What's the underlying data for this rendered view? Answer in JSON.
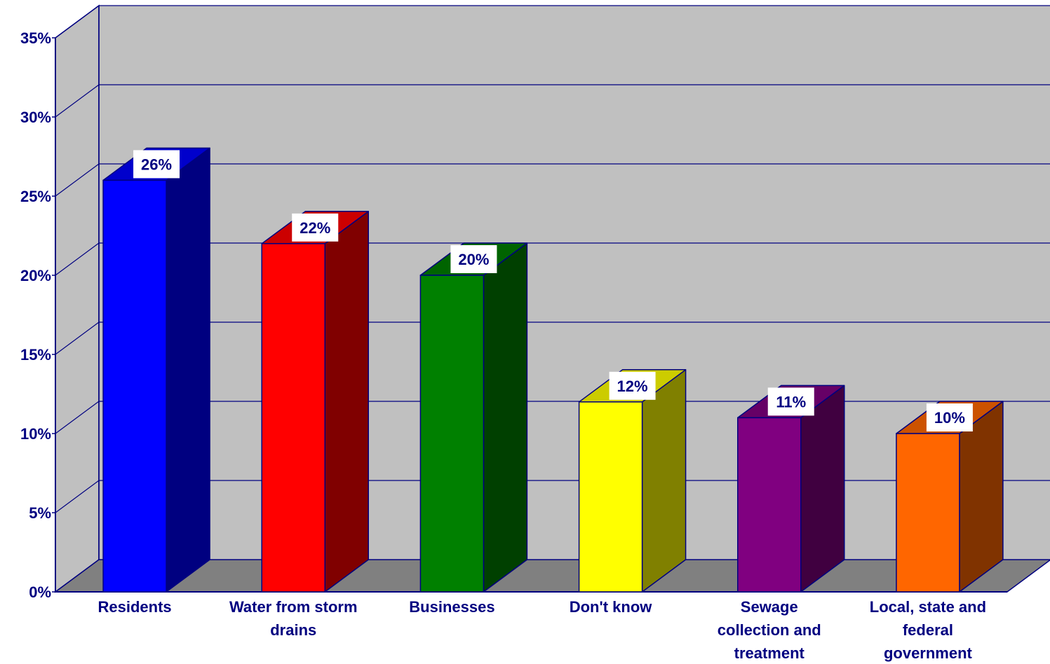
{
  "chart_data": {
    "type": "bar",
    "title": "",
    "xlabel": "",
    "ylabel": "",
    "ylim": [
      0,
      35
    ],
    "yticks": [
      "0%",
      "5%",
      "10%",
      "15%",
      "20%",
      "25%",
      "30%",
      "35%"
    ],
    "grid": true,
    "categories": [
      "Residents",
      "Water from storm drains",
      "Businesses",
      "Don't know",
      "Sewage collection and treatment",
      "Local, state and federal government"
    ],
    "category_lines": [
      [
        "Residents"
      ],
      [
        "Water from storm",
        "drains"
      ],
      [
        "Businesses"
      ],
      [
        "Don't know"
      ],
      [
        "Sewage",
        "collection and",
        "treatment"
      ],
      [
        "Local, state and",
        "federal",
        "government"
      ]
    ],
    "values": [
      26,
      22,
      20,
      12,
      11,
      10
    ],
    "data_labels": [
      "26%",
      "22%",
      "20%",
      "12%",
      "11%",
      "10%"
    ],
    "bar_colors": [
      {
        "front": "#0000FF",
        "side": "#000080",
        "top": "#0000CC"
      },
      {
        "front": "#FF0000",
        "side": "#800000",
        "top": "#CC0000"
      },
      {
        "front": "#008000",
        "side": "#004000",
        "top": "#006400"
      },
      {
        "front": "#FFFF00",
        "side": "#808000",
        "top": "#CCCC00"
      },
      {
        "front": "#800080",
        "side": "#400040",
        "top": "#660066"
      },
      {
        "front": "#FF6600",
        "side": "#803300",
        "top": "#CC5200"
      }
    ],
    "colors": {
      "wall": "#C0C0C0",
      "floor": "#808080",
      "grid": "#000080",
      "outline": "#000080",
      "text": "#000080",
      "label_box": "#FFFFFF"
    }
  }
}
